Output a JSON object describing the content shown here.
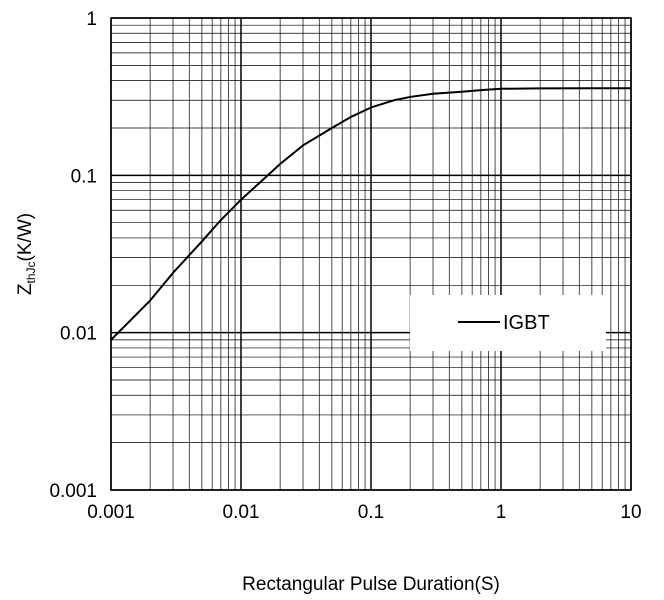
{
  "chart_data": {
    "type": "line",
    "title": "",
    "xlabel": "Rectangular Pulse Duration(S)",
    "ylabel": {
      "main": "Z",
      "sub": "thJc",
      "unit": "(K/W)"
    },
    "x_scale": "log",
    "y_scale": "log",
    "xlim": [
      0.001,
      10
    ],
    "ylim": [
      0.001,
      1
    ],
    "x_tick_labels": [
      "0.001",
      "0.01",
      "0.1",
      "1",
      "10"
    ],
    "y_tick_labels": [
      "0.001",
      "0.01",
      "0.1",
      "1"
    ],
    "grid": true,
    "legend_position": "right-middle",
    "series": [
      {
        "name": "IGBT",
        "color": "#000000",
        "x": [
          0.001,
          0.002,
          0.003,
          0.005,
          0.007,
          0.01,
          0.015,
          0.02,
          0.03,
          0.05,
          0.07,
          0.1,
          0.15,
          0.2,
          0.3,
          0.5,
          0.7,
          1,
          2,
          5,
          10
        ],
        "y": [
          0.009,
          0.016,
          0.024,
          0.038,
          0.052,
          0.07,
          0.095,
          0.118,
          0.155,
          0.2,
          0.235,
          0.27,
          0.3,
          0.315,
          0.33,
          0.34,
          0.348,
          0.355,
          0.357,
          0.358,
          0.358
        ]
      }
    ]
  }
}
